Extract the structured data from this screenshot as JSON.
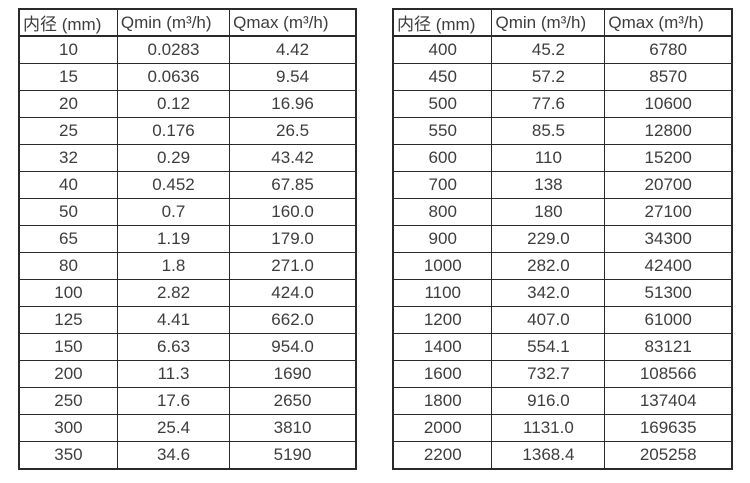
{
  "colors": {
    "background": "#ffffff",
    "border": "#2a2a2a",
    "text": "#3d3d3d"
  },
  "tables": [
    {
      "name": "flow-range-table-small-diameters",
      "headers": [
        "内径 (mm)",
        "Qmin (m³/h)",
        "Qmax (m³/h)"
      ],
      "rows": [
        [
          "10",
          "0.0283",
          "4.42"
        ],
        [
          "15",
          "0.0636",
          "9.54"
        ],
        [
          "20",
          "0.12",
          "16.96"
        ],
        [
          "25",
          "0.176",
          "26.5"
        ],
        [
          "32",
          "0.29",
          "43.42"
        ],
        [
          "40",
          "0.452",
          "67.85"
        ],
        [
          "50",
          "0.7",
          "160.0"
        ],
        [
          "65",
          "1.19",
          "179.0"
        ],
        [
          "80",
          "1.8",
          "271.0"
        ],
        [
          "100",
          "2.82",
          "424.0"
        ],
        [
          "125",
          "4.41",
          "662.0"
        ],
        [
          "150",
          "6.63",
          "954.0"
        ],
        [
          "200",
          "11.3",
          "1690"
        ],
        [
          "250",
          "17.6",
          "2650"
        ],
        [
          "300",
          "25.4",
          "3810"
        ],
        [
          "350",
          "34.6",
          "5190"
        ]
      ]
    },
    {
      "name": "flow-range-table-large-diameters",
      "headers": [
        "内径 (mm)",
        "Qmin (m³/h)",
        "Qmax (m³/h)"
      ],
      "rows": [
        [
          "400",
          "45.2",
          "6780"
        ],
        [
          "450",
          "57.2",
          "8570"
        ],
        [
          "500",
          "77.6",
          "10600"
        ],
        [
          "550",
          "85.5",
          "12800"
        ],
        [
          "600",
          "110",
          "15200"
        ],
        [
          "700",
          "138",
          "20700"
        ],
        [
          "800",
          "180",
          "27100"
        ],
        [
          "900",
          "229.0",
          "34300"
        ],
        [
          "1000",
          "282.0",
          "42400"
        ],
        [
          "1100",
          "342.0",
          "51300"
        ],
        [
          "1200",
          "407.0",
          "61000"
        ],
        [
          "1400",
          "554.1",
          "83121"
        ],
        [
          "1600",
          "732.7",
          "108566"
        ],
        [
          "1800",
          "916.0",
          "137404"
        ],
        [
          "2000",
          "1131.0",
          "169635"
        ],
        [
          "2200",
          "1368.4",
          "205258"
        ]
      ]
    }
  ]
}
